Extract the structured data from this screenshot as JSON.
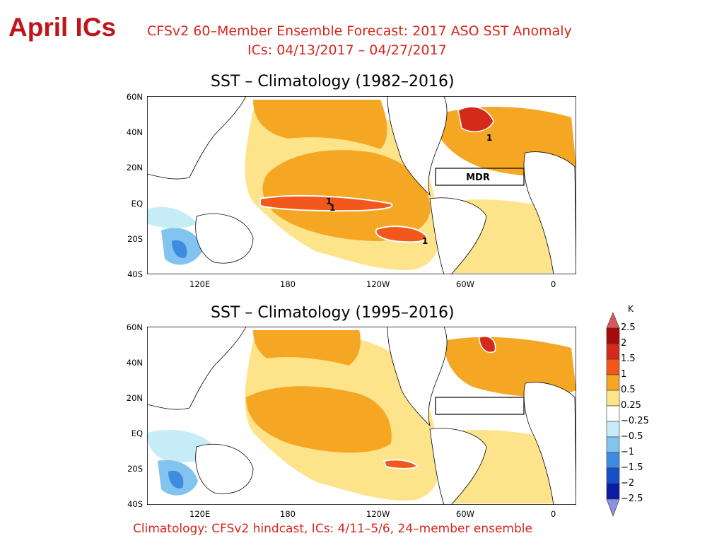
{
  "slide_title": "April ICs",
  "header": {
    "line1": "CFSv2 60–Member Ensemble Forecast: 2017 ASO SST Anomaly",
    "line2": "ICs: 04/13/2017 – 04/27/2017"
  },
  "maps": [
    {
      "title": "SST – Climatology (1982–2016)",
      "lat_labels": [
        "60N",
        "40N",
        "20N",
        "EQ",
        "20S",
        "40S"
      ],
      "lon_labels": [
        "120E",
        "180",
        "120W",
        "60W",
        "0"
      ],
      "box_label": "MDR",
      "contour_labels": [
        "1",
        "1",
        "1",
        "1"
      ]
    },
    {
      "title": "SST – Climatology (1995–2016)",
      "lat_labels": [
        "60N",
        "40N",
        "20N",
        "EQ",
        "20S",
        "40S"
      ],
      "lon_labels": [
        "120E",
        "180",
        "120W",
        "60W",
        "0"
      ]
    }
  ],
  "colorbar": {
    "unit": "K",
    "levels": [
      "2.5",
      "2",
      "1.5",
      "1",
      "0.5",
      "0.25",
      "−0.25",
      "−0.5",
      "−1",
      "−1.5",
      "−2",
      "−2.5"
    ],
    "colors": {
      "gt_2_5": "#d9585a",
      "2_to_2_5": "#a60a0a",
      "1_5_to_2": "#d42a1c",
      "1_to_1_5": "#f2581c",
      "0_5_to_1": "#f5a623",
      "0_25_to_0_5": "#fde38a",
      "neutral": "#ffffff",
      "m0_5_to_m0_25": "#c6ecf8",
      "m1_to_m0_5": "#82c3f0",
      "m1_5_to_m1": "#3d8ce0",
      "m2_to_m1_5": "#1650c8",
      "m2_5_to_m2": "#0c1ca0",
      "lt_m2_5": "#8f8fe8"
    }
  },
  "footer": "Climatology: CFSv2 hindcast, ICs: 4/11–5/6, 24–member ensemble"
}
